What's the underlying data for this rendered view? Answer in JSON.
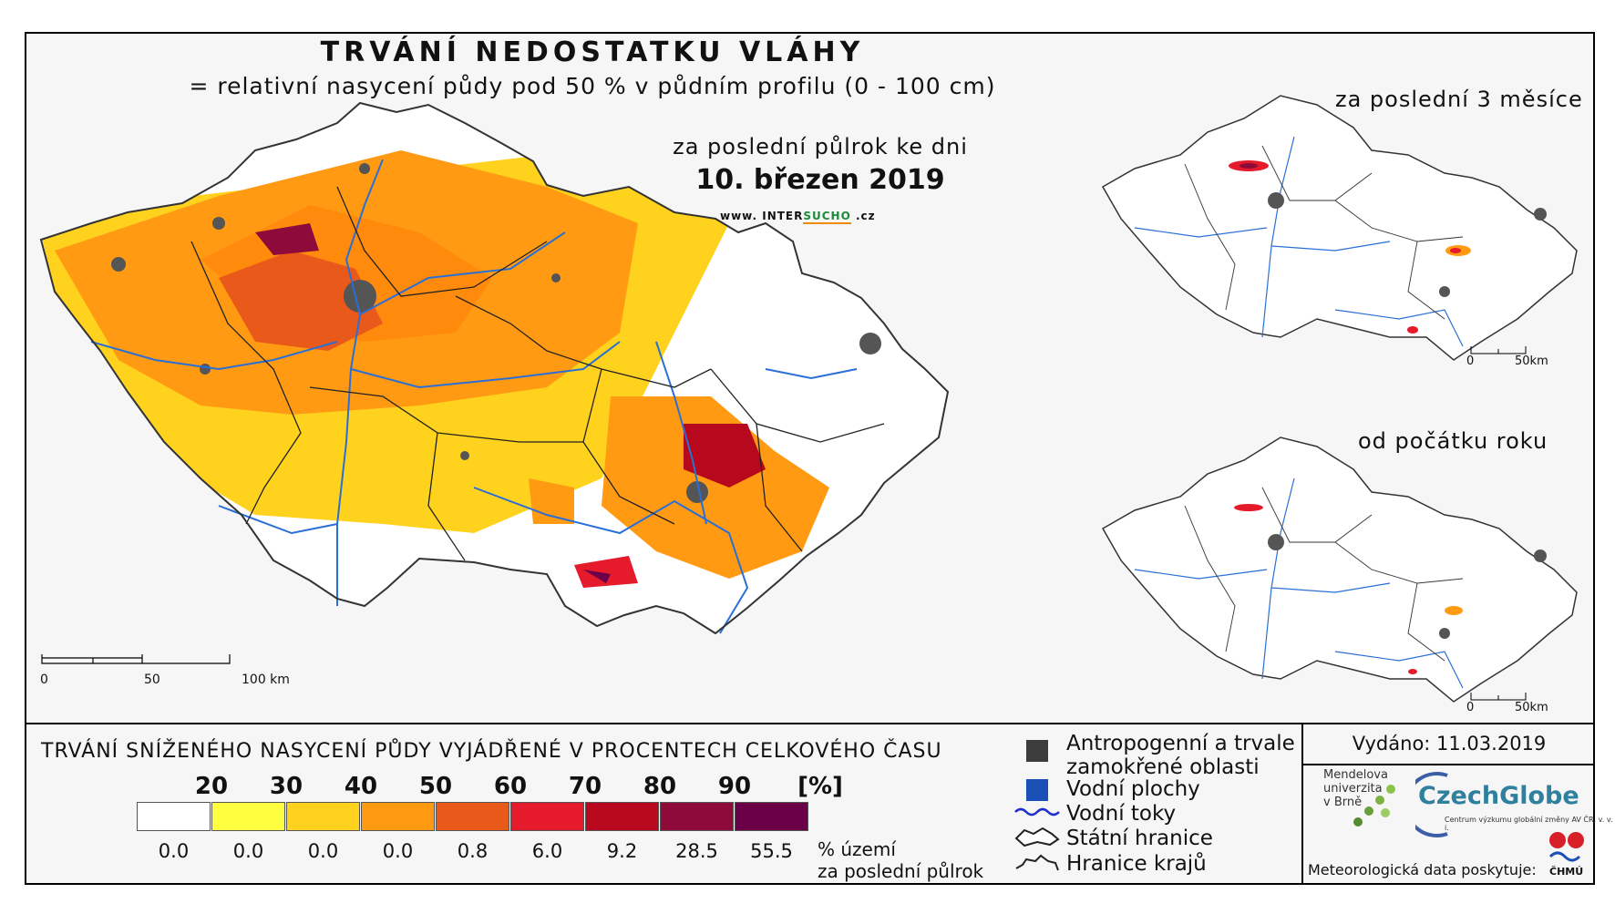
{
  "header": {
    "title": "TRVÁNÍ NEDOSTATKU VLÁHY",
    "subtitle": "= relativní nasycení půdy pod 50 % v půdním profilu (0 - 100 cm)",
    "period": "za poslední půlrok ke dni",
    "date": "10. březen 2019",
    "web_prefix": "www. INTER",
    "web_accent": "SUCHO",
    "web_suffix": " .cz"
  },
  "main_map": {
    "scale": {
      "labels": [
        "0",
        "50",
        "100 km"
      ]
    }
  },
  "insets": [
    {
      "label": "za poslední 3 měsíce",
      "scale": {
        "start": "0",
        "end": "50km"
      }
    },
    {
      "label": "od počátku roku",
      "scale": {
        "start": "0",
        "end": "50km"
      }
    }
  ],
  "legend": {
    "title": "TRVÁNÍ SNÍŽENÉHO NASYCENÍ PŮDY VYJÁDŘENÉ V PROCENTECH CELKOVÉHO ČASU",
    "class_labels": [
      "20",
      "30",
      "40",
      "50",
      "60",
      "70",
      "80",
      "90",
      "[%]"
    ],
    "classes": [
      {
        "color": "#ffffff",
        "share": "0.0"
      },
      {
        "color": "#ffff40",
        "share": "0.0"
      },
      {
        "color": "#ffd21e",
        "share": "0.0"
      },
      {
        "color": "#ff9a12",
        "share": "0.0"
      },
      {
        "color": "#e8591a",
        "share": "0.8"
      },
      {
        "color": "#e51a2a",
        "share": "6.0"
      },
      {
        "color": "#b8081e",
        "share": "9.2"
      },
      {
        "color": "#8e0a3a",
        "share": "28.5"
      },
      {
        "color": "#6b0048",
        "share": "55.5"
      }
    ],
    "share_note_1": "% území",
    "share_note_2": "za poslední půlrok",
    "items": {
      "anthropogenic_1": "Antropogenní a trvale",
      "anthropogenic_2": "zamokřené oblasti",
      "water_bodies": "Vodní plochy",
      "water_courses": "Vodní toky",
      "state_border": "Státní hranice",
      "region_border": "Hranice krajů"
    }
  },
  "info": {
    "issued": "Vydáno: 11.03.2019",
    "mendel_1": "Mendelova",
    "mendel_2": "univerzita",
    "mendel_3": "v Brně",
    "czechglobe": "CzechGlobe",
    "czechglobe_sub": "Centrum výzkumu globální změny AV ČR, v. v. i.",
    "credit": "Meteorologická data poskytuje:",
    "chmu": "ČHMÚ"
  },
  "colors": {
    "river": "#2a6fd6",
    "urban": "#555555",
    "water": "#1a4fb5"
  }
}
